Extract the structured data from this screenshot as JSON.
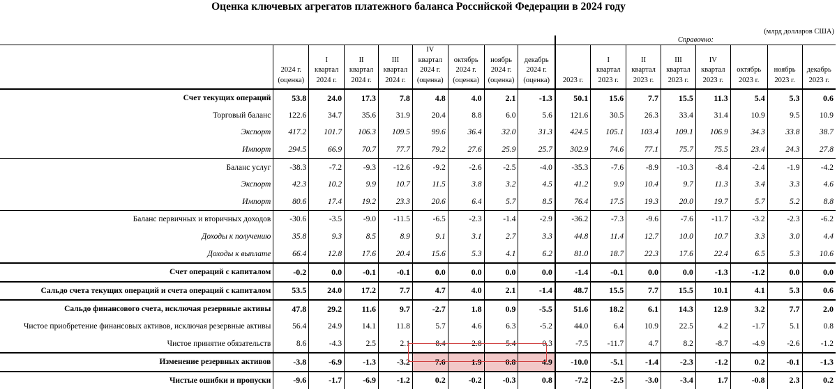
{
  "title": "Оценка ключевых агрегатов платежного баланса Российской Федерации в 2024 году",
  "units": "(млрд долларов США)",
  "spravochno": "Справочно:",
  "columns": [
    [
      "2024 г.",
      "(оценка)"
    ],
    [
      "I",
      "квартал",
      "2024 г."
    ],
    [
      "II",
      "квартал",
      "2024 г."
    ],
    [
      "III",
      "квартал",
      "2024 г."
    ],
    [
      "IV",
      "квартал",
      "2024 г.",
      "(оценка)"
    ],
    [
      "октябрь",
      "2024 г.",
      "(оценка)"
    ],
    [
      "ноябрь",
      "2024 г.",
      "(оценка)"
    ],
    [
      "декабрь",
      "2024 г.",
      "(оценка)"
    ],
    [
      "2023 г."
    ],
    [
      "I",
      "квартал",
      "2023 г."
    ],
    [
      "II",
      "квартал",
      "2023 г."
    ],
    [
      "III",
      "квартал",
      "2023 г."
    ],
    [
      "IV",
      "квартал",
      "2023 г."
    ],
    [
      "октябрь",
      "2023 г."
    ],
    [
      "ноябрь",
      "2023 г."
    ],
    [
      "декабрь",
      "2023 г."
    ]
  ],
  "rows": [
    {
      "label": "Счет текущих операций",
      "style": "bold",
      "indent": 1,
      "values": [
        "53.8",
        "24.0",
        "17.3",
        "7.8",
        "4.8",
        "4.0",
        "2.1",
        "-1.3",
        "50.1",
        "15.6",
        "7.7",
        "15.5",
        "11.3",
        "5.4",
        "5.3",
        "0.6"
      ]
    },
    {
      "label": "Торговый баланс",
      "style": "normal",
      "indent": 2,
      "values": [
        "122.6",
        "34.7",
        "35.6",
        "31.9",
        "20.4",
        "8.8",
        "6.0",
        "5.6",
        "121.6",
        "30.5",
        "26.3",
        "33.4",
        "31.4",
        "10.9",
        "9.5",
        "10.9"
      ]
    },
    {
      "label": "Экспорт",
      "style": "italic",
      "indent": 3,
      "values": [
        "417.2",
        "101.7",
        "106.3",
        "109.5",
        "99.6",
        "36.4",
        "32.0",
        "31.3",
        "424.5",
        "105.1",
        "103.4",
        "109.1",
        "106.9",
        "34.3",
        "33.8",
        "38.7"
      ]
    },
    {
      "label": "Импорт",
      "style": "italic",
      "indent": 3,
      "values": [
        "294.5",
        "66.9",
        "70.7",
        "77.7",
        "79.2",
        "27.6",
        "25.9",
        "25.7",
        "302.9",
        "74.6",
        "77.1",
        "75.7",
        "75.5",
        "23.4",
        "24.3",
        "27.8"
      ]
    },
    {
      "label": "Баланс услуг",
      "style": "normal",
      "indent": 2,
      "values": [
        "-38.3",
        "-7.2",
        "-9.3",
        "-12.6",
        "-9.2",
        "-2.6",
        "-2.5",
        "-4.0",
        "-35.3",
        "-7.6",
        "-8.9",
        "-10.3",
        "-8.4",
        "-2.4",
        "-1.9",
        "-4.2"
      ]
    },
    {
      "label": "Экспорт",
      "style": "italic",
      "indent": 3,
      "values": [
        "42.3",
        "10.2",
        "9.9",
        "10.7",
        "11.5",
        "3.8",
        "3.2",
        "4.5",
        "41.2",
        "9.9",
        "10.4",
        "9.7",
        "11.3",
        "3.4",
        "3.3",
        "4.6"
      ]
    },
    {
      "label": "Импорт",
      "style": "italic",
      "indent": 3,
      "values": [
        "80.6",
        "17.4",
        "19.2",
        "23.3",
        "20.6",
        "6.4",
        "5.7",
        "8.5",
        "76.4",
        "17.5",
        "19.3",
        "20.0",
        "19.7",
        "5.7",
        "5.2",
        "8.8"
      ]
    },
    {
      "label": "Баланс первичных и вторичных доходов",
      "style": "normal",
      "indent": 2,
      "values": [
        "-30.6",
        "-3.5",
        "-9.0",
        "-11.5",
        "-6.5",
        "-2.3",
        "-1.4",
        "-2.9",
        "-36.2",
        "-7.3",
        "-9.6",
        "-7.6",
        "-11.7",
        "-3.2",
        "-2.3",
        "-6.2"
      ]
    },
    {
      "label": "Доходы к получению",
      "style": "italic",
      "indent": 3,
      "values": [
        "35.8",
        "9.3",
        "8.5",
        "8.9",
        "9.1",
        "3.1",
        "2.7",
        "3.3",
        "44.8",
        "11.4",
        "12.7",
        "10.0",
        "10.7",
        "3.3",
        "3.0",
        "4.4"
      ]
    },
    {
      "label": "Доходы к выплате",
      "style": "italic",
      "indent": 3,
      "values": [
        "66.4",
        "12.8",
        "17.6",
        "20.4",
        "15.6",
        "5.3",
        "4.1",
        "6.2",
        "81.0",
        "18.7",
        "22.3",
        "17.6",
        "22.4",
        "6.5",
        "5.3",
        "10.6"
      ]
    },
    {
      "label": "Счет операций с капиталом",
      "style": "bold",
      "indent": 1,
      "values": [
        "-0.2",
        "0.0",
        "-0.1",
        "-0.1",
        "0.0",
        "0.0",
        "0.0",
        "0.0",
        "-1.4",
        "-0.1",
        "0.0",
        "0.0",
        "-1.3",
        "-1.2",
        "0.0",
        "0.0"
      ]
    },
    {
      "label": "Сальдо счета текущих операций и счета операций с капиталом",
      "style": "bold",
      "indent": 0,
      "values": [
        "53.5",
        "24.0",
        "17.2",
        "7.7",
        "4.7",
        "4.0",
        "2.1",
        "-1.4",
        "48.7",
        "15.5",
        "7.7",
        "15.5",
        "10.1",
        "4.1",
        "5.3",
        "0.6"
      ]
    },
    {
      "label": "Сальдо финансового счета, исключая резервные активы",
      "style": "bold",
      "indent": 0,
      "values": [
        "47.8",
        "29.2",
        "11.6",
        "9.7",
        "-2.7",
        "1.8",
        "0.9",
        "-5.5",
        "51.6",
        "18.2",
        "6.1",
        "14.3",
        "12.9",
        "3.2",
        "7.7",
        "2.0"
      ]
    },
    {
      "label": "Чистое приобретение финансовых активов, исключая резервные активы",
      "style": "normal",
      "indent": 2,
      "values": [
        "56.4",
        "24.9",
        "14.1",
        "11.8",
        "5.7",
        "4.6",
        "6.3",
        "-5.2",
        "44.0",
        "6.4",
        "10.9",
        "22.5",
        "4.2",
        "-1.7",
        "5.1",
        "0.8"
      ]
    },
    {
      "label": "Чистое принятие обязательств",
      "style": "normal",
      "indent": 2,
      "values": [
        "8.6",
        "-4.3",
        "2.5",
        "2.1",
        "8.4",
        "2.8",
        "5.4",
        "0.3",
        "-7.5",
        "-11.7",
        "4.7",
        "8.2",
        "-8.7",
        "-4.9",
        "-2.6",
        "-1.2"
      ]
    },
    {
      "label": "Изменение резервных активов",
      "style": "bold",
      "indent": 0,
      "values": [
        "-3.8",
        "-6.9",
        "-1.3",
        "-3.2",
        "7.6",
        "1.9",
        "0.8",
        "4.9",
        "-10.0",
        "-5.1",
        "-1.4",
        "-2.3",
        "-1.2",
        "0.2",
        "-0.1",
        "-1.3"
      ]
    },
    {
      "label": "Чистые ошибки и пропуски",
      "style": "bold",
      "indent": 0,
      "values": [
        "-9.6",
        "-1.7",
        "-6.9",
        "-1.2",
        "0.2",
        "-0.2",
        "-0.3",
        "0.8",
        "-7.2",
        "-2.5",
        "-3.0",
        "-3.4",
        "1.7",
        "-0.8",
        "2.3",
        "0.2"
      ]
    }
  ],
  "highlight": {
    "row": 15,
    "columns": [
      4,
      5,
      6,
      7
    ],
    "color": "#f2c8c8",
    "border_color": "#d04040"
  }
}
